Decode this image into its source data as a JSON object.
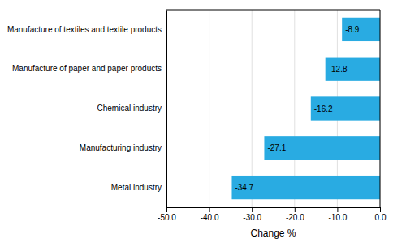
{
  "chart_data": {
    "type": "bar",
    "orientation": "horizontal",
    "categories": [
      "Metal industry",
      "Manufacturing industry",
      "Chemical industry",
      "Manufacture of paper and paper products",
      "Manufacture of textiles and textile products"
    ],
    "values": [
      -34.7,
      -27.1,
      -16.2,
      -12.8,
      -8.9
    ],
    "color": "#29abe2",
    "xlabel": "Change %",
    "xlim": [
      -50,
      0
    ],
    "xticks": [
      {
        "value": -50,
        "label": "-50.0"
      },
      {
        "value": -40,
        "label": "-40.0"
      },
      {
        "value": -30,
        "label": "-30.0"
      },
      {
        "value": -20,
        "label": "-20.0"
      },
      {
        "value": -10,
        "label": "-10.0"
      },
      {
        "value": 0,
        "label": "0.0"
      }
    ],
    "grid": true,
    "data_labels": true
  }
}
